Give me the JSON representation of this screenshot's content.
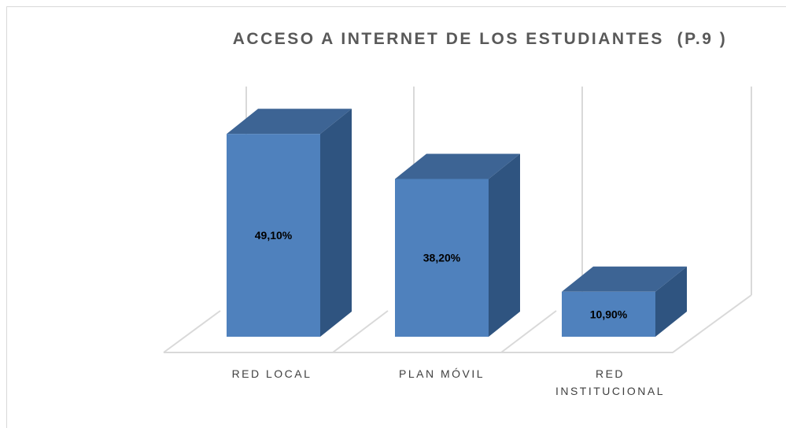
{
  "chart_data": {
    "type": "bar3d",
    "title": "ACCESO A INTERNET DE LOS ESTUDIANTES  (P.9 )",
    "categories": [
      "RED LOCAL",
      "PLAN MÓVIL",
      "RED INSTITUCIONAL"
    ],
    "values": [
      49.1,
      38.2,
      10.9
    ],
    "value_labels": [
      "49,10%",
      "38,20%",
      "10,90%"
    ],
    "color": "#4f81bd"
  }
}
